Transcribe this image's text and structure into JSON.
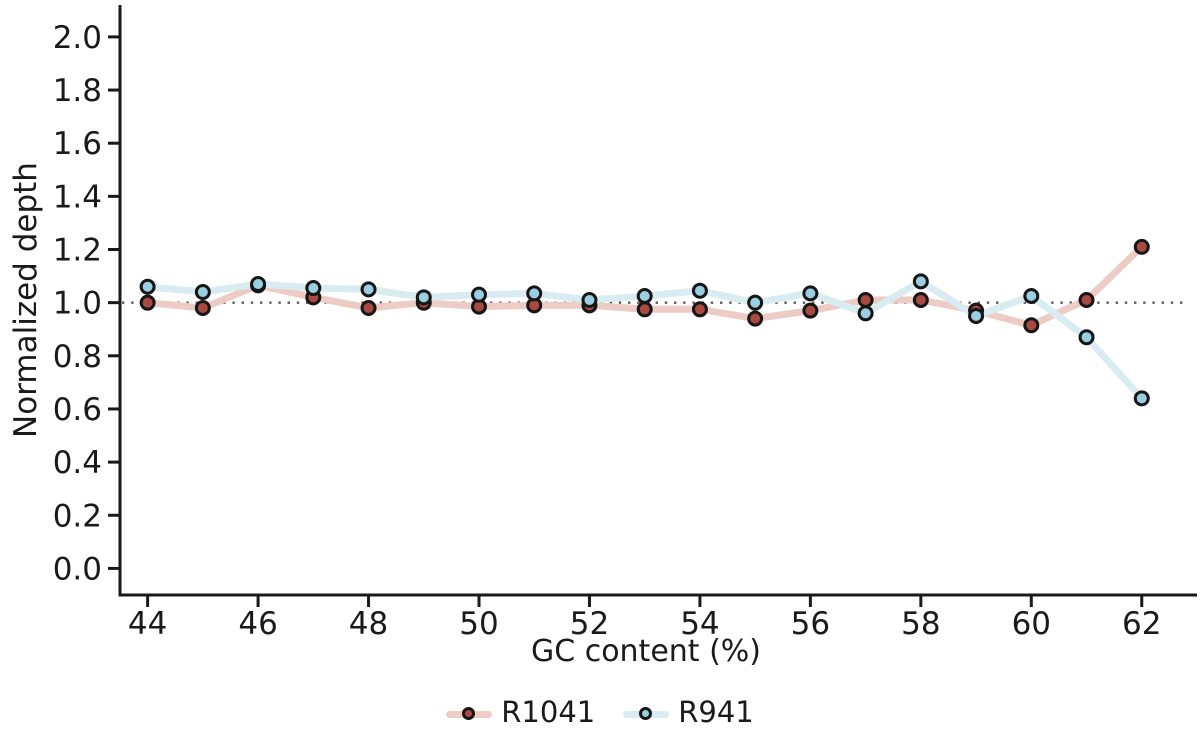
{
  "figure": {
    "background": "#ffffff",
    "text_color": "#1a1a1a"
  },
  "chart_data": {
    "type": "line",
    "title": "",
    "xlabel": "GC content (%)",
    "ylabel": "Normalized depth",
    "x": [
      44,
      45,
      46,
      47,
      48,
      49,
      50,
      51,
      52,
      53,
      54,
      55,
      56,
      57,
      58,
      59,
      60,
      61,
      62
    ],
    "series": [
      {
        "name": "R1041",
        "line_color": "#eeccc6",
        "marker_color": "#a84a41",
        "values": [
          1.0,
          0.98,
          1.065,
          1.02,
          0.98,
          1.0,
          0.985,
          0.99,
          0.99,
          0.975,
          0.975,
          0.94,
          0.97,
          1.01,
          1.01,
          0.97,
          0.915,
          1.01,
          1.21
        ]
      },
      {
        "name": "R941",
        "line_color": "#d8ecf2",
        "marker_color": "#99cfe0",
        "values": [
          1.06,
          1.04,
          1.07,
          1.055,
          1.05,
          1.02,
          1.03,
          1.035,
          1.01,
          1.025,
          1.045,
          1.0,
          1.035,
          0.96,
          1.08,
          0.95,
          1.025,
          0.87,
          0.64
        ]
      }
    ],
    "xticks": [
      44,
      46,
      48,
      50,
      52,
      54,
      56,
      58,
      60,
      62
    ],
    "yticks": [
      0.0,
      0.2,
      0.4,
      0.6,
      0.8,
      1.0,
      1.2,
      1.4,
      1.6,
      1.8,
      2.0
    ],
    "xlim": [
      43.5,
      63.0
    ],
    "ylim": [
      -0.1,
      2.12
    ],
    "reference_line_y": 1.0,
    "reference_line_color": "#5a5a5a",
    "axis_color": "#1a1a1a",
    "grid": false,
    "legend_position": "bottom-center"
  }
}
